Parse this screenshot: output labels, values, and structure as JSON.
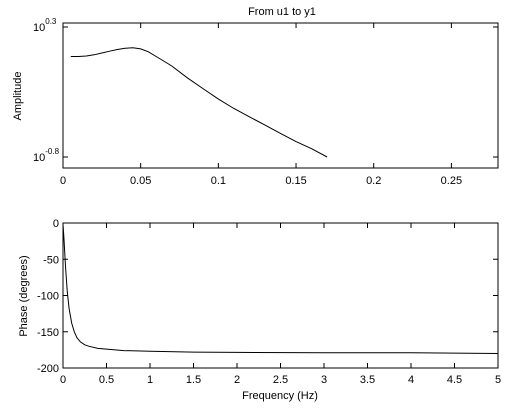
{
  "chart_data": [
    {
      "type": "line",
      "title": "From u1 to y1",
      "xlabel": "",
      "ylabel": "Amplitude",
      "xscale": "linear",
      "yscale": "log",
      "xlim": [
        0,
        0.28
      ],
      "ylim_log10": [
        -0.9,
        0.3
      ],
      "x_ticks": [
        "0",
        "0.05",
        "0.1",
        "0.15",
        "0.2",
        "0.25"
      ],
      "y_ticks": [
        {
          "base": "10",
          "exp": "0.3"
        },
        {
          "base": "10",
          "exp": "-0.8"
        }
      ],
      "grid": false,
      "series": [
        {
          "x": [
            0.005,
            0.01,
            0.015,
            0.02,
            0.025,
            0.03,
            0.035,
            0.04,
            0.045,
            0.05,
            0.055,
            0.06,
            0.07,
            0.08,
            0.09,
            0.1,
            0.11,
            0.12,
            0.13,
            0.14,
            0.15,
            0.16,
            0.17
          ],
          "y_log10": [
            0.05,
            0.05,
            0.055,
            0.065,
            0.08,
            0.095,
            0.11,
            0.12,
            0.125,
            0.115,
            0.09,
            0.05,
            -0.03,
            -0.13,
            -0.22,
            -0.31,
            -0.39,
            -0.46,
            -0.53,
            -0.6,
            -0.67,
            -0.73,
            -0.8
          ]
        }
      ]
    },
    {
      "type": "line",
      "title": "",
      "xlabel": "Frequency (Hz)",
      "ylabel": "Phase (degrees)",
      "xlim": [
        0,
        5
      ],
      "ylim": [
        -200,
        0
      ],
      "x_ticks": [
        "0",
        "0.5",
        "1",
        "1.5",
        "2",
        "2.5",
        "3",
        "3.5",
        "4",
        "4.5",
        "5"
      ],
      "y_ticks": [
        "0",
        "-50",
        "-100",
        "-150",
        "-200"
      ],
      "grid": false,
      "series": [
        {
          "x": [
            0.0,
            0.01,
            0.02,
            0.03,
            0.05,
            0.07,
            0.1,
            0.13,
            0.16,
            0.2,
            0.25,
            0.3,
            0.4,
            0.5,
            0.7,
            1.0,
            1.5,
            2.0,
            3.0,
            4.0,
            4.5,
            5.0
          ],
          "y": [
            -2,
            -20,
            -40,
            -62,
            -95,
            -118,
            -138,
            -150,
            -158,
            -164,
            -168,
            -170,
            -173,
            -174,
            -176,
            -177,
            -178,
            -178.5,
            -179,
            -179,
            -179.5,
            -180
          ]
        }
      ]
    }
  ]
}
